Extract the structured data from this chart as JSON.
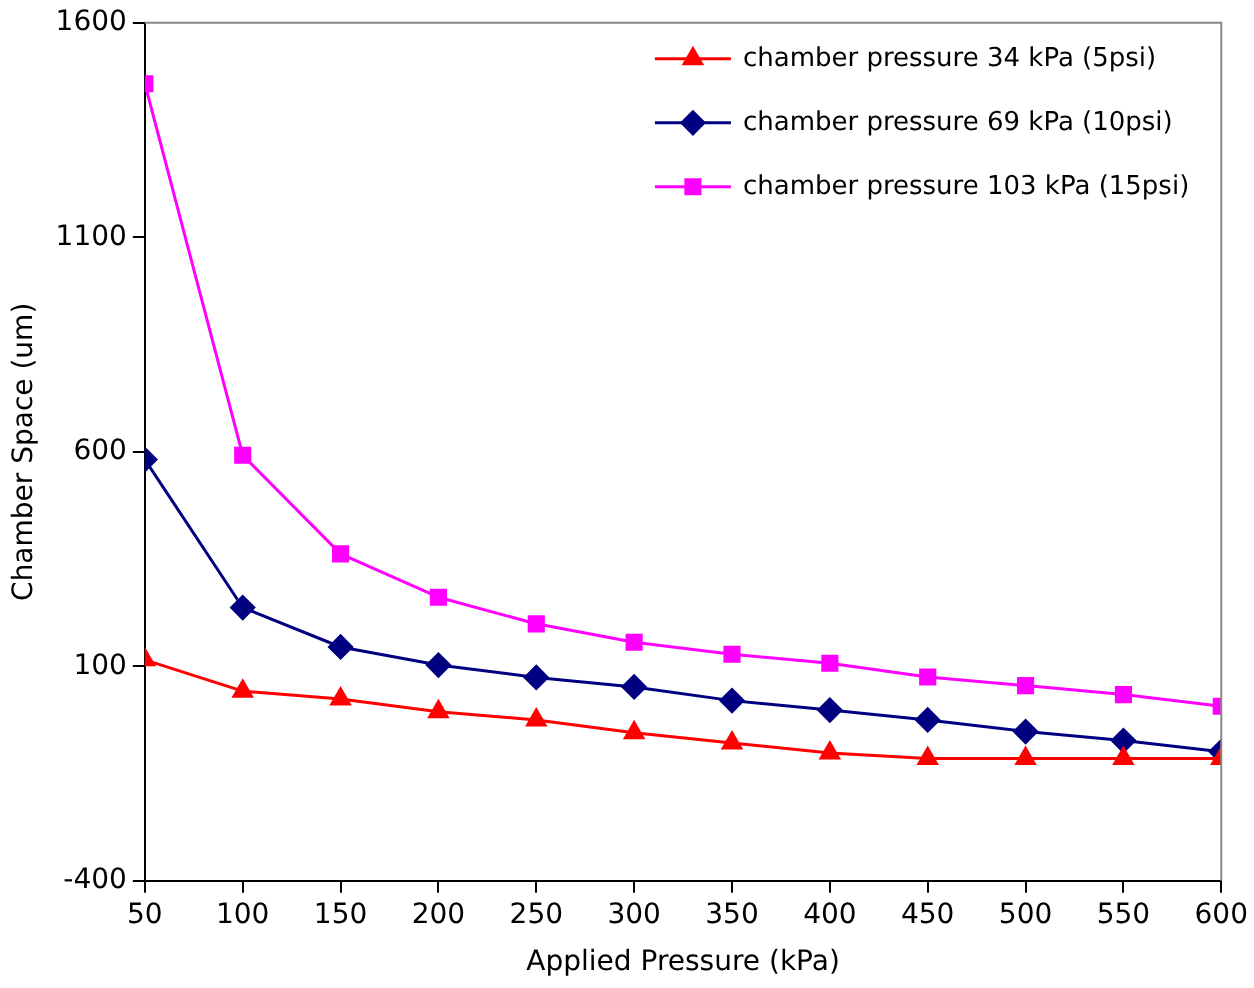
{
  "chart_data": {
    "type": "line",
    "xlabel": "Applied Pressure (kPa)",
    "ylabel": "Chamber Space (um)",
    "x": [
      50,
      100,
      150,
      200,
      250,
      300,
      350,
      400,
      450,
      500,
      550,
      600
    ],
    "xlim": [
      50,
      600
    ],
    "xticks": [
      50,
      100,
      150,
      200,
      250,
      300,
      350,
      400,
      450,
      500,
      550,
      600
    ],
    "ylim": [
      -400,
      1600
    ],
    "yticks": [
      -400,
      100,
      600,
      1100,
      1600
    ],
    "grid": false,
    "legend": "top right",
    "line_style": "solid",
    "series": [
      {
        "name": "chamber pressure 34 kPa (5psi)",
        "color": "#ff0000",
        "marker": "triangle",
        "values": [
          115,
          42,
          24,
          -6,
          -25,
          -55,
          -79,
          -102,
          -115,
          -115,
          -115,
          -115
        ]
      },
      {
        "name": "chamber pressure 69 kPa (10psi)",
        "color": "#000080",
        "marker": "diamond",
        "values": [
          582,
          237,
          145,
          103,
          74,
          52,
          20,
          -2,
          -25,
          -52,
          -73,
          -99
        ]
      },
      {
        "name": "chamber pressure 103 kPa (15psi)",
        "color": "#ff00ff",
        "marker": "square",
        "values": [
          1458,
          592,
          362,
          261,
          199,
          156,
          128,
          107,
          75,
          55,
          34,
          7
        ]
      }
    ]
  }
}
